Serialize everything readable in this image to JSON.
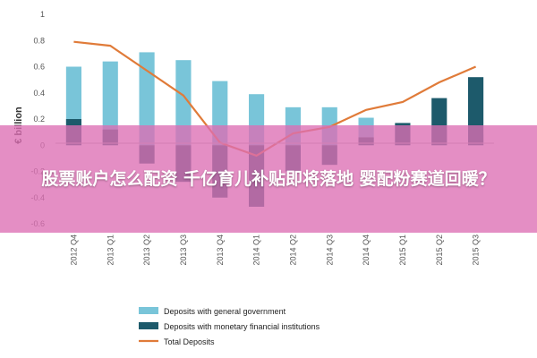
{
  "banner": {
    "headline": "股票账户怎么配资 千亿育儿补贴即将落地 婴配粉赛道回暖？"
  },
  "chart_data": {
    "type": "bar",
    "ylabel": "€ billion",
    "ylim": [
      -0.6,
      1.0
    ],
    "yticks": [
      "1",
      "0.8",
      "0.6",
      "0.4",
      "0.2",
      "0",
      "-0.2",
      "-0.4",
      "-0.6"
    ],
    "categories": [
      "2012 Q4",
      "2013 Q1",
      "2013 Q2",
      "2013 Q3",
      "2013 Q4",
      "2014 Q1",
      "2014 Q2",
      "2014 Q3",
      "2014 Q4",
      "2015 Q1",
      "2015 Q2",
      "2015 Q3"
    ],
    "series": [
      {
        "name": "Deposits with general government",
        "values": [
          0.6,
          0.64,
          0.71,
          0.65,
          0.49,
          0.39,
          0.29,
          0.29,
          0.21,
          0.16,
          0.12,
          0.08
        ]
      },
      {
        "name": "Deposits with monetary financial institutions",
        "values": [
          0.2,
          0.12,
          -0.14,
          -0.28,
          -0.4,
          -0.47,
          -0.2,
          -0.15,
          0.06,
          0.17,
          0.36,
          0.52
        ]
      },
      {
        "name": "Total Deposits",
        "values": [
          0.79,
          0.76,
          0.57,
          0.38,
          0.02,
          -0.08,
          0.09,
          0.14,
          0.27,
          0.33,
          0.48,
          0.6
        ]
      }
    ],
    "colors": [
      "#79c5d9",
      "#1d5a6b",
      "#e07b39"
    ],
    "legend_position": "bottom-left",
    "grid": false
  }
}
